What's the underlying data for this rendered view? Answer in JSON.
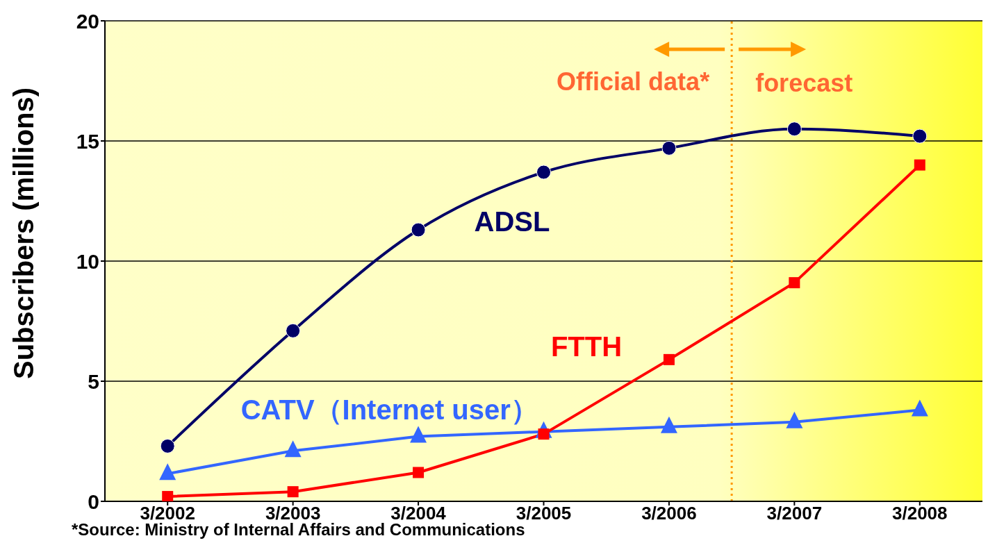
{
  "chart_data": {
    "type": "line",
    "ylabel": "Subscribers (millions)",
    "x": [
      "2002-03",
      "2003-03",
      "2004-03",
      "2005-03",
      "2006-03",
      "2007-03",
      "2008-03"
    ],
    "xlim": [
      "2001-09",
      "2008-09"
    ],
    "xticks": [
      {
        "value": "2002-03",
        "label": "3/2002"
      },
      {
        "value": "2003-03",
        "label": "3/2003"
      },
      {
        "value": "2004-03",
        "label": "3/2004"
      },
      {
        "value": "2005-03",
        "label": "3/2005"
      },
      {
        "value": "2006-03",
        "label": "3/2006"
      },
      {
        "value": "2007-03",
        "label": "3/2007"
      },
      {
        "value": "2008-03",
        "label": "3/2008"
      }
    ],
    "ylim": [
      0,
      20
    ],
    "yticks": [
      0,
      5,
      10,
      15,
      20
    ],
    "grid": "y",
    "series": [
      {
        "name": "ADSL",
        "color": "#000066",
        "marker": "circle",
        "values": [
          2.3,
          7.1,
          11.3,
          13.7,
          14.7,
          15.5,
          15.2
        ]
      },
      {
        "name": "FTTH",
        "color": "#ff0000",
        "marker": "square",
        "values": [
          0.2,
          0.4,
          1.2,
          2.8,
          5.9,
          9.1,
          14.0
        ]
      },
      {
        "name": "CATV（Internet user）",
        "color": "#3366ff",
        "marker": "triangle",
        "values": [
          1.15,
          2.1,
          2.7,
          2.9,
          3.1,
          3.3,
          3.8
        ]
      }
    ],
    "ref_lines": [
      {
        "axis": "x",
        "value": "2006-09",
        "color": "#ff9900",
        "line_style": "dotted"
      }
    ],
    "annotations": [
      "Official data*",
      "forecast",
      "*Source:  Ministry of  Internal Affairs and Communications"
    ]
  }
}
